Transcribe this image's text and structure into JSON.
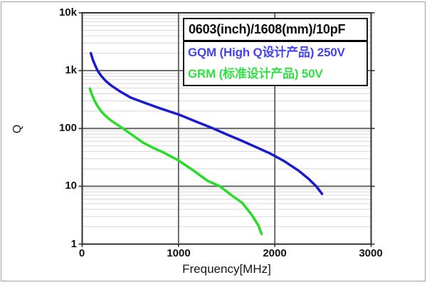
{
  "window": {
    "bg": "#ffffff",
    "frame_border": "#a3a3a3"
  },
  "legend": {
    "title": "0603(inch)/1608(mm)/10pF",
    "entries": [
      {
        "label": "GQM (High Q设计产品) 250V",
        "color": "#4343ef"
      },
      {
        "label": "GRM (标准设计产品) 50V",
        "color": "#30e145"
      }
    ]
  },
  "chart_data": {
    "type": "line",
    "title": "0603(inch)/1608(mm)/10pF",
    "xlabel": "Frequency[MHz]",
    "ylabel": "Q",
    "x_axis": {
      "scale": "linear",
      "min": 0,
      "max": 3000,
      "ticks": [
        {
          "label": "0",
          "value": 0
        },
        {
          "label": "1000",
          "value": 1000
        },
        {
          "label": "2000",
          "value": 2000
        },
        {
          "label": "3000",
          "value": 3000
        }
      ]
    },
    "y_axis": {
      "scale": "log",
      "min": 1,
      "max": 10000,
      "ticks": [
        {
          "label": "10k",
          "value": 10000
        },
        {
          "label": "1k",
          "value": 1000
        },
        {
          "label": "100",
          "value": 100
        },
        {
          "label": "10",
          "value": 10
        },
        {
          "label": "1",
          "value": 1
        }
      ]
    },
    "grid": {
      "major_color": "#5c5c5c",
      "minor_color": "#d7d7d7",
      "border_color": "#303030",
      "minor_on": true
    },
    "series": [
      {
        "name": "GQM (High Q设计产品) 250V",
        "voltage": "250V",
        "color": "#1a1ace",
        "points": [
          [
            90,
            2000
          ],
          [
            110,
            1550
          ],
          [
            135,
            1230
          ],
          [
            160,
            1000
          ],
          [
            200,
            800
          ],
          [
            250,
            650
          ],
          [
            300,
            555
          ],
          [
            400,
            430
          ],
          [
            500,
            345
          ],
          [
            630,
            285
          ],
          [
            800,
            225
          ],
          [
            1000,
            175
          ],
          [
            1200,
            128
          ],
          [
            1360,
            100
          ],
          [
            1500,
            79
          ],
          [
            1650,
            62
          ],
          [
            1800,
            48
          ],
          [
            1950,
            37
          ],
          [
            2100,
            27
          ],
          [
            2250,
            18.5
          ],
          [
            2350,
            13.5
          ],
          [
            2430,
            10
          ],
          [
            2490,
            7.4
          ]
        ]
      },
      {
        "name": "GRM (标准设计产品) 50V",
        "voltage": "50V",
        "color": "#28dd28",
        "points": [
          [
            80,
            490
          ],
          [
            100,
            390
          ],
          [
            125,
            310
          ],
          [
            155,
            250
          ],
          [
            195,
            200
          ],
          [
            245,
            163
          ],
          [
            305,
            135
          ],
          [
            424,
            100
          ],
          [
            520,
            77
          ],
          [
            630,
            57
          ],
          [
            750,
            45
          ],
          [
            850,
            38
          ],
          [
            1000,
            28
          ],
          [
            1150,
            19
          ],
          [
            1300,
            12.5
          ],
          [
            1430,
            10
          ],
          [
            1550,
            7
          ],
          [
            1660,
            5.2
          ],
          [
            1760,
            3.2
          ],
          [
            1830,
            2.1
          ],
          [
            1862,
            1.5
          ]
        ]
      }
    ]
  }
}
